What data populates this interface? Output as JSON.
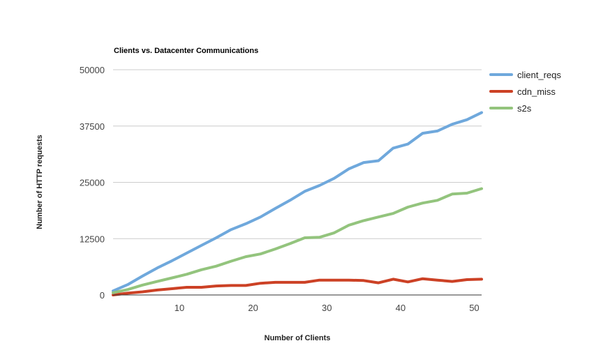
{
  "chart_data": {
    "type": "line",
    "title": "Clients vs. Datacenter Communications",
    "xlabel": "Number of Clients",
    "ylabel": "Number of HTTP requests",
    "xlim": [
      1,
      51
    ],
    "ylim": [
      0,
      50000
    ],
    "xticks": [
      10,
      20,
      30,
      40,
      50
    ],
    "yticks": [
      0,
      12500,
      25000,
      37500,
      50000
    ],
    "ytick_labels": [
      "0",
      "12500",
      "25000",
      "37500",
      "50000"
    ],
    "grid": "horizontal",
    "legend_position": "right",
    "x": [
      1,
      3,
      5,
      7,
      9,
      11,
      13,
      15,
      17,
      19,
      21,
      23,
      25,
      27,
      29,
      31,
      33,
      35,
      37,
      39,
      41,
      43,
      45,
      47,
      49,
      51
    ],
    "series": [
      {
        "name": "client_reqs",
        "color": "#6fa8dc",
        "values": [
          900,
          2300,
          4200,
          6000,
          7600,
          9300,
          11000,
          12700,
          14500,
          15800,
          17300,
          19200,
          21000,
          23000,
          24300,
          25900,
          28000,
          29400,
          29800,
          32600,
          33500,
          35900,
          36400,
          37900,
          38900,
          40500
        ]
      },
      {
        "name": "cdn_miss",
        "color": "#cc4125",
        "values": [
          0,
          400,
          700,
          1100,
          1400,
          1700,
          1700,
          2000,
          2100,
          2100,
          2600,
          2800,
          2800,
          2800,
          3300,
          3300,
          3300,
          3200,
          2700,
          3500,
          2900,
          3600,
          3300,
          3000,
          3400,
          3500
        ]
      },
      {
        "name": "s2s",
        "color": "#93c47d",
        "values": [
          500,
          1200,
          2200,
          3000,
          3800,
          4600,
          5600,
          6400,
          7500,
          8500,
          9100,
          10200,
          11400,
          12700,
          12800,
          13800,
          15500,
          16500,
          17300,
          18100,
          19500,
          20400,
          21000,
          22400,
          22600,
          23600
        ]
      }
    ]
  }
}
